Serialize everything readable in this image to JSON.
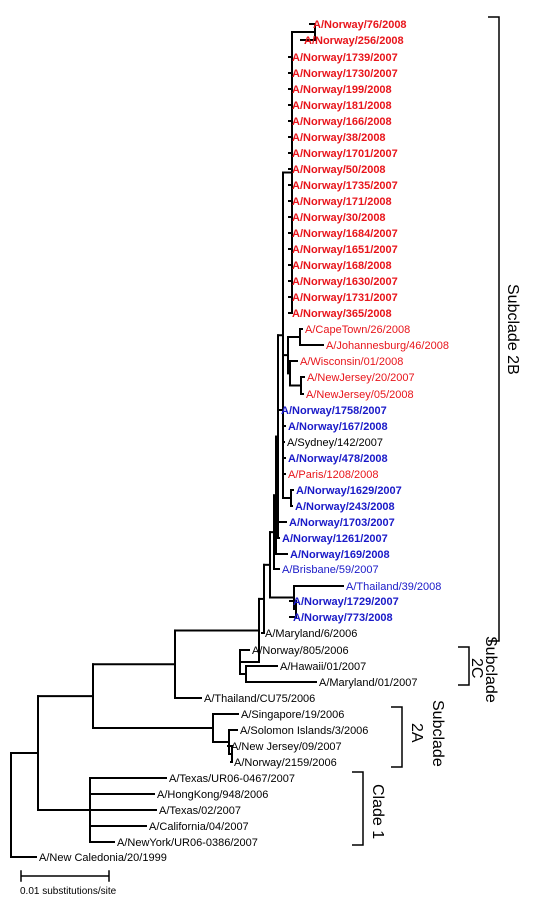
{
  "colors": {
    "red": "#e8151b",
    "blue": "#1a1ac8",
    "black": "#000000"
  },
  "taxa": [
    {
      "label": "A/Norway/76/2008",
      "color": "red",
      "bold": true
    },
    {
      "label": "A/Norway/256/2008",
      "color": "red",
      "bold": true
    },
    {
      "label": "A/Norway/1739/2007",
      "color": "red",
      "bold": true
    },
    {
      "label": "A/Norway/1730/2007",
      "color": "red",
      "bold": true
    },
    {
      "label": "A/Norway/199/2008",
      "color": "red",
      "bold": true
    },
    {
      "label": "A/Norway/181/2008",
      "color": "red",
      "bold": true
    },
    {
      "label": "A/Norway/166/2008",
      "color": "red",
      "bold": true
    },
    {
      "label": "A/Norway/38/2008",
      "color": "red",
      "bold": true
    },
    {
      "label": "A/Norway/1701/2007",
      "color": "red",
      "bold": true
    },
    {
      "label": "A/Norway/50/2008",
      "color": "red",
      "bold": true
    },
    {
      "label": "A/Norway/1735/2007",
      "color": "red",
      "bold": true
    },
    {
      "label": "A/Norway/171/2008",
      "color": "red",
      "bold": true
    },
    {
      "label": "A/Norway/30/2008",
      "color": "red",
      "bold": true
    },
    {
      "label": "A/Norway/1684/2007",
      "color": "red",
      "bold": true
    },
    {
      "label": "A/Norway/1651/2007",
      "color": "red",
      "bold": true
    },
    {
      "label": "A/Norway/168/2008",
      "color": "red",
      "bold": true
    },
    {
      "label": "A/Norway/1630/2007",
      "color": "red",
      "bold": true
    },
    {
      "label": "A/Norway/1731/2007",
      "color": "red",
      "bold": true
    },
    {
      "label": "A/Norway/365/2008",
      "color": "red",
      "bold": true
    },
    {
      "label": "A/CapeTown/26/2008",
      "color": "red",
      "bold": false
    },
    {
      "label": "A/Johannesburg/46/2008",
      "color": "red",
      "bold": false
    },
    {
      "label": "A/Wisconsin/01/2008",
      "color": "red",
      "bold": false
    },
    {
      "label": "A/NewJersey/20/2007",
      "color": "red",
      "bold": false
    },
    {
      "label": "A/NewJersey/05/2008",
      "color": "red",
      "bold": false
    },
    {
      "label": "A/Norway/1758/2007",
      "color": "blue",
      "bold": true
    },
    {
      "label": "A/Norway/167/2008",
      "color": "blue",
      "bold": true
    },
    {
      "label": "A/Sydney/142/2007",
      "color": "black",
      "bold": false
    },
    {
      "label": "A/Norway/478/2008",
      "color": "blue",
      "bold": true
    },
    {
      "label": "A/Paris/1208/2008",
      "color": "red",
      "bold": false
    },
    {
      "label": "A/Norway/1629/2007",
      "color": "blue",
      "bold": true
    },
    {
      "label": "A/Norway/243/2008",
      "color": "blue",
      "bold": true
    },
    {
      "label": "A/Norway/1703/2007",
      "color": "blue",
      "bold": true
    },
    {
      "label": "A/Norway/1261/2007",
      "color": "blue",
      "bold": true
    },
    {
      "label": "A/Norway/169/2008",
      "color": "blue",
      "bold": true
    },
    {
      "label": "A/Brisbane/59/2007",
      "color": "blue",
      "bold": false
    },
    {
      "label": "A/Thailand/39/2008",
      "color": "blue",
      "bold": false
    },
    {
      "label": "A/Norway/1729/2007",
      "color": "blue",
      "bold": true
    },
    {
      "label": "A/Norway/773/2008",
      "color": "blue",
      "bold": true
    },
    {
      "label": "A/Maryland/6/2006",
      "color": "black",
      "bold": false
    },
    {
      "label": "A/Norway/805/2006",
      "color": "black",
      "bold": false
    },
    {
      "label": "A/Hawaii/01/2007",
      "color": "black",
      "bold": false
    },
    {
      "label": "A/Maryland/01/2007",
      "color": "black",
      "bold": false
    },
    {
      "label": "A/Thailand/CU75/2006",
      "color": "black",
      "bold": false
    },
    {
      "label": "A/Singapore/19/2006",
      "color": "black",
      "bold": false
    },
    {
      "label": "A/Solomon Islands/3/2006",
      "color": "black",
      "bold": false
    },
    {
      "label": "A/New Jersey/09/2007",
      "color": "black",
      "bold": false
    },
    {
      "label": "A/Norway/2159/2006",
      "color": "black",
      "bold": false
    },
    {
      "label": "A/Texas/UR06-0467/2007",
      "color": "black",
      "bold": false
    },
    {
      "label": "A/HongKong/948/2006",
      "color": "black",
      "bold": false
    },
    {
      "label": "A/Texas/02/2007",
      "color": "black",
      "bold": false
    },
    {
      "label": "A/California/04/2007",
      "color": "black",
      "bold": false
    },
    {
      "label": "A/NewYork/UR06-0386/2007",
      "color": "black",
      "bold": false
    },
    {
      "label": "A/New Caledonia/20/1999",
      "color": "black",
      "bold": false
    }
  ],
  "clades": {
    "subclade_2b": "Subclade 2B",
    "subclade_2c_line1": "Subclade",
    "subclade_2c_line2": "2C",
    "subclade_2a_line1": "Subclade",
    "subclade_2a_line2": "2A",
    "clade_1": "Clade 1"
  },
  "scale_bar": {
    "label": "0.01 substitutions/site"
  }
}
